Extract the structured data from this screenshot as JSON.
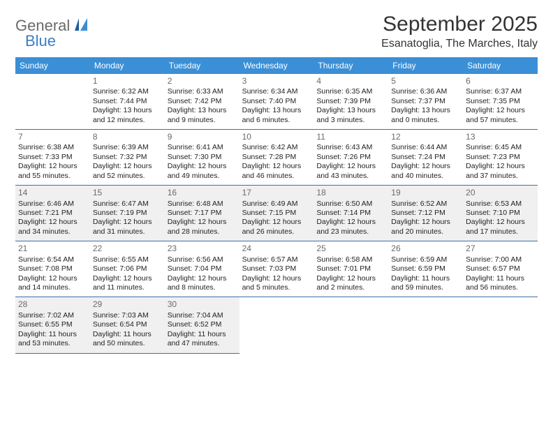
{
  "brand": {
    "main": "General",
    "sub": "Blue"
  },
  "title": "September 2025",
  "location": "Esanatoglia, The Marches, Italy",
  "colors": {
    "header_bg": "#3b8fd6",
    "header_text": "#ffffff",
    "cell_border": "#3b6fa8",
    "shaded_bg": "#f0f0f0",
    "text": "#333333",
    "logo_gray": "#6a6a6a",
    "logo_blue": "#3b7fc4"
  },
  "day_headers": [
    "Sunday",
    "Monday",
    "Tuesday",
    "Wednesday",
    "Thursday",
    "Friday",
    "Saturday"
  ],
  "weeks": [
    [
      {
        "num": "",
        "lines": [],
        "shaded": false
      },
      {
        "num": "1",
        "lines": [
          "Sunrise: 6:32 AM",
          "Sunset: 7:44 PM",
          "Daylight: 13 hours",
          "and 12 minutes."
        ],
        "shaded": false
      },
      {
        "num": "2",
        "lines": [
          "Sunrise: 6:33 AM",
          "Sunset: 7:42 PM",
          "Daylight: 13 hours",
          "and 9 minutes."
        ],
        "shaded": false
      },
      {
        "num": "3",
        "lines": [
          "Sunrise: 6:34 AM",
          "Sunset: 7:40 PM",
          "Daylight: 13 hours",
          "and 6 minutes."
        ],
        "shaded": false
      },
      {
        "num": "4",
        "lines": [
          "Sunrise: 6:35 AM",
          "Sunset: 7:39 PM",
          "Daylight: 13 hours",
          "and 3 minutes."
        ],
        "shaded": false
      },
      {
        "num": "5",
        "lines": [
          "Sunrise: 6:36 AM",
          "Sunset: 7:37 PM",
          "Daylight: 13 hours",
          "and 0 minutes."
        ],
        "shaded": false
      },
      {
        "num": "6",
        "lines": [
          "Sunrise: 6:37 AM",
          "Sunset: 7:35 PM",
          "Daylight: 12 hours",
          "and 57 minutes."
        ],
        "shaded": false
      }
    ],
    [
      {
        "num": "7",
        "lines": [
          "Sunrise: 6:38 AM",
          "Sunset: 7:33 PM",
          "Daylight: 12 hours",
          "and 55 minutes."
        ],
        "shaded": false
      },
      {
        "num": "8",
        "lines": [
          "Sunrise: 6:39 AM",
          "Sunset: 7:32 PM",
          "Daylight: 12 hours",
          "and 52 minutes."
        ],
        "shaded": false
      },
      {
        "num": "9",
        "lines": [
          "Sunrise: 6:41 AM",
          "Sunset: 7:30 PM",
          "Daylight: 12 hours",
          "and 49 minutes."
        ],
        "shaded": false
      },
      {
        "num": "10",
        "lines": [
          "Sunrise: 6:42 AM",
          "Sunset: 7:28 PM",
          "Daylight: 12 hours",
          "and 46 minutes."
        ],
        "shaded": false
      },
      {
        "num": "11",
        "lines": [
          "Sunrise: 6:43 AM",
          "Sunset: 7:26 PM",
          "Daylight: 12 hours",
          "and 43 minutes."
        ],
        "shaded": false
      },
      {
        "num": "12",
        "lines": [
          "Sunrise: 6:44 AM",
          "Sunset: 7:24 PM",
          "Daylight: 12 hours",
          "and 40 minutes."
        ],
        "shaded": false
      },
      {
        "num": "13",
        "lines": [
          "Sunrise: 6:45 AM",
          "Sunset: 7:23 PM",
          "Daylight: 12 hours",
          "and 37 minutes."
        ],
        "shaded": false
      }
    ],
    [
      {
        "num": "14",
        "lines": [
          "Sunrise: 6:46 AM",
          "Sunset: 7:21 PM",
          "Daylight: 12 hours",
          "and 34 minutes."
        ],
        "shaded": true
      },
      {
        "num": "15",
        "lines": [
          "Sunrise: 6:47 AM",
          "Sunset: 7:19 PM",
          "Daylight: 12 hours",
          "and 31 minutes."
        ],
        "shaded": true
      },
      {
        "num": "16",
        "lines": [
          "Sunrise: 6:48 AM",
          "Sunset: 7:17 PM",
          "Daylight: 12 hours",
          "and 28 minutes."
        ],
        "shaded": true
      },
      {
        "num": "17",
        "lines": [
          "Sunrise: 6:49 AM",
          "Sunset: 7:15 PM",
          "Daylight: 12 hours",
          "and 26 minutes."
        ],
        "shaded": true
      },
      {
        "num": "18",
        "lines": [
          "Sunrise: 6:50 AM",
          "Sunset: 7:14 PM",
          "Daylight: 12 hours",
          "and 23 minutes."
        ],
        "shaded": true
      },
      {
        "num": "19",
        "lines": [
          "Sunrise: 6:52 AM",
          "Sunset: 7:12 PM",
          "Daylight: 12 hours",
          "and 20 minutes."
        ],
        "shaded": true
      },
      {
        "num": "20",
        "lines": [
          "Sunrise: 6:53 AM",
          "Sunset: 7:10 PM",
          "Daylight: 12 hours",
          "and 17 minutes."
        ],
        "shaded": true
      }
    ],
    [
      {
        "num": "21",
        "lines": [
          "Sunrise: 6:54 AM",
          "Sunset: 7:08 PM",
          "Daylight: 12 hours",
          "and 14 minutes."
        ],
        "shaded": false
      },
      {
        "num": "22",
        "lines": [
          "Sunrise: 6:55 AM",
          "Sunset: 7:06 PM",
          "Daylight: 12 hours",
          "and 11 minutes."
        ],
        "shaded": false
      },
      {
        "num": "23",
        "lines": [
          "Sunrise: 6:56 AM",
          "Sunset: 7:04 PM",
          "Daylight: 12 hours",
          "and 8 minutes."
        ],
        "shaded": false
      },
      {
        "num": "24",
        "lines": [
          "Sunrise: 6:57 AM",
          "Sunset: 7:03 PM",
          "Daylight: 12 hours",
          "and 5 minutes."
        ],
        "shaded": false
      },
      {
        "num": "25",
        "lines": [
          "Sunrise: 6:58 AM",
          "Sunset: 7:01 PM",
          "Daylight: 12 hours",
          "and 2 minutes."
        ],
        "shaded": false
      },
      {
        "num": "26",
        "lines": [
          "Sunrise: 6:59 AM",
          "Sunset: 6:59 PM",
          "Daylight: 11 hours",
          "and 59 minutes."
        ],
        "shaded": false
      },
      {
        "num": "27",
        "lines": [
          "Sunrise: 7:00 AM",
          "Sunset: 6:57 PM",
          "Daylight: 11 hours",
          "and 56 minutes."
        ],
        "shaded": false
      }
    ],
    [
      {
        "num": "28",
        "lines": [
          "Sunrise: 7:02 AM",
          "Sunset: 6:55 PM",
          "Daylight: 11 hours",
          "and 53 minutes."
        ],
        "shaded": true
      },
      {
        "num": "29",
        "lines": [
          "Sunrise: 7:03 AM",
          "Sunset: 6:54 PM",
          "Daylight: 11 hours",
          "and 50 minutes."
        ],
        "shaded": true
      },
      {
        "num": "30",
        "lines": [
          "Sunrise: 7:04 AM",
          "Sunset: 6:52 PM",
          "Daylight: 11 hours",
          "and 47 minutes."
        ],
        "shaded": true
      },
      {
        "num": "",
        "lines": [],
        "shaded": false,
        "noborder": true
      },
      {
        "num": "",
        "lines": [],
        "shaded": false,
        "noborder": true
      },
      {
        "num": "",
        "lines": [],
        "shaded": false,
        "noborder": true
      },
      {
        "num": "",
        "lines": [],
        "shaded": false,
        "noborder": true
      }
    ]
  ]
}
